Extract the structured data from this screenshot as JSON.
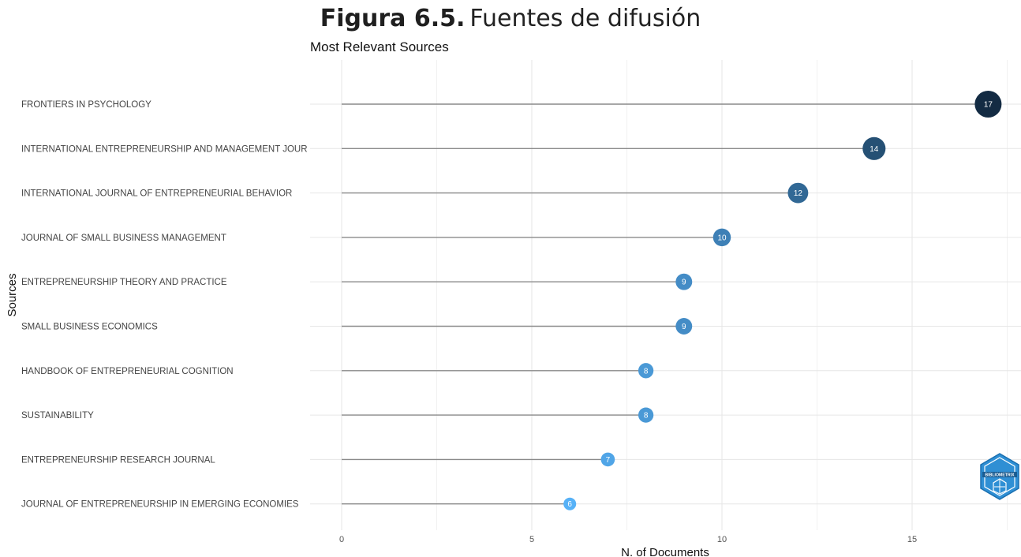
{
  "figure": {
    "label": "Figura 6.5.",
    "text": "Fuentes de difusión"
  },
  "logo": {
    "icon": "bibliometrix-logo-icon",
    "text": "BIBLIOMETRIX"
  },
  "chart_data": {
    "type": "lollipop",
    "title": "Most Relevant Sources",
    "xlabel": "N. of Documents",
    "ylabel": "Sources",
    "xlim": [
      0,
      17.8
    ],
    "xticks": [
      0,
      5,
      10,
      15
    ],
    "grid": true,
    "categories": [
      "FRONTIERS IN PSYCHOLOGY",
      "INTERNATIONAL ENTREPRENEURSHIP AND MANAGEMENT JOUR",
      "INTERNATIONAL JOURNAL OF ENTREPRENEURIAL BEHAVIOR",
      "JOURNAL OF SMALL BUSINESS MANAGEMENT",
      "ENTREPRENEURSHIP THEORY AND PRACTICE",
      "SMALL BUSINESS ECONOMICS",
      "HANDBOOK OF ENTREPRENEURIAL COGNITION",
      "SUSTAINABILITY",
      "ENTREPRENEURSHIP RESEARCH JOURNAL",
      "JOURNAL OF ENTREPRENEURSHIP IN EMERGING ECONOMIES"
    ],
    "values": [
      17,
      14,
      12,
      10,
      9,
      9,
      8,
      8,
      7,
      6
    ],
    "colors": {
      "low": "#56B1F7",
      "high": "#132B43",
      "stem": "#8a8a8a",
      "grid_major": "#e6e6e6",
      "grid_minor": "#f1f1f1"
    }
  }
}
